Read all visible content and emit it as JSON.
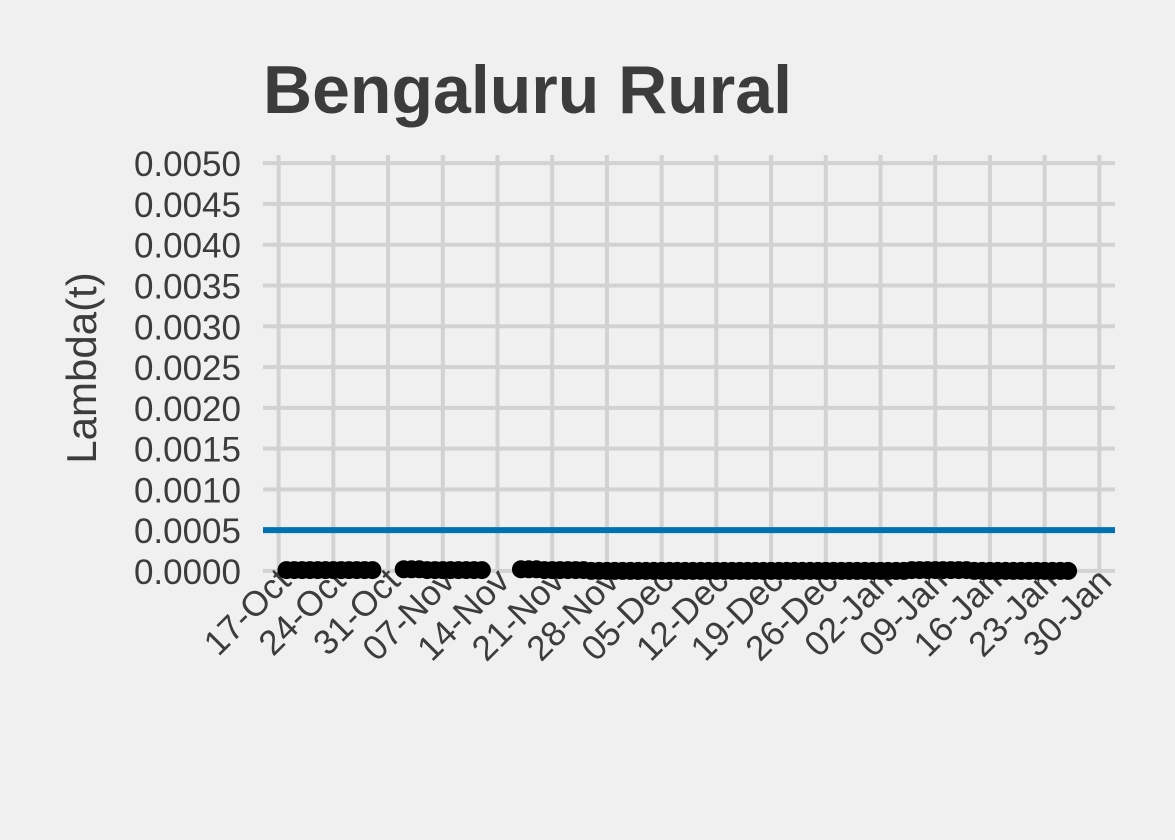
{
  "chart_data": {
    "type": "line",
    "title": "Bengaluru Rural",
    "xlabel": "",
    "ylabel": "Lambda(t)",
    "x_ticks": [
      "17-Oct",
      "24-Oct",
      "31-Oct",
      "07-Nov",
      "14-Nov",
      "21-Nov",
      "28-Nov",
      "05-Dec",
      "12-Dec",
      "19-Dec",
      "26-Dec",
      "02-Jan",
      "09-Jan",
      "16-Jan",
      "23-Jan",
      "30-Jan"
    ],
    "y_ticks": [
      "0.0000",
      "0.0005",
      "0.0010",
      "0.0015",
      "0.0020",
      "0.0025",
      "0.0030",
      "0.0035",
      "0.0040",
      "0.0045",
      "0.0050"
    ],
    "xlim": [
      "2020-10-15",
      "2021-02-01"
    ],
    "ylim": [
      -5e-05,
      0.0051
    ],
    "grid": true,
    "reference_line": {
      "y": 0.0005,
      "color": "#0072b2"
    },
    "series": [
      {
        "color": "#000000",
        "segments": [
          {
            "start": "2020-10-18",
            "end": "2020-10-29",
            "values": [
              1e-05,
              1e-05,
              1e-05,
              1e-05,
              1e-05,
              1e-05,
              1e-05,
              1e-05,
              1e-05,
              1e-05,
              1e-05,
              1e-05
            ]
          },
          {
            "start": "2020-11-02",
            "end": "2020-11-12",
            "values": [
              2e-05,
              2e-05,
              2e-05,
              1e-05,
              1e-05,
              1e-05,
              1e-05,
              1e-05,
              1e-05,
              1e-05,
              1e-05
            ]
          },
          {
            "start": "2020-11-17",
            "end": "2021-01-26",
            "values": [
              2e-05,
              2e-05,
              2e-05,
              1e-05,
              1e-05,
              1e-05,
              1e-05,
              1e-05,
              1e-05,
              0.0,
              0.0,
              0.0,
              0.0,
              0.0,
              0.0,
              0.0,
              0.0,
              0.0,
              0.0,
              0.0,
              0.0,
              0.0,
              0.0,
              0.0,
              0.0,
              0.0,
              0.0,
              0.0,
              0.0,
              0.0,
              0.0,
              0.0,
              0.0,
              0.0,
              0.0,
              0.0,
              0.0,
              0.0,
              0.0,
              0.0,
              0.0,
              0.0,
              0.0,
              0.0,
              0.0,
              0.0,
              0.0,
              0.0,
              0.0,
              0.0,
              1e-05,
              1e-05,
              1e-05,
              1e-05,
              1e-05,
              1e-05,
              1e-05,
              1e-05,
              0.0,
              0.0,
              0.0,
              0.0,
              0.0,
              0.0,
              0.0,
              0.0,
              0.0,
              0.0,
              0.0,
              0.0,
              0.0
            ]
          }
        ]
      }
    ]
  }
}
